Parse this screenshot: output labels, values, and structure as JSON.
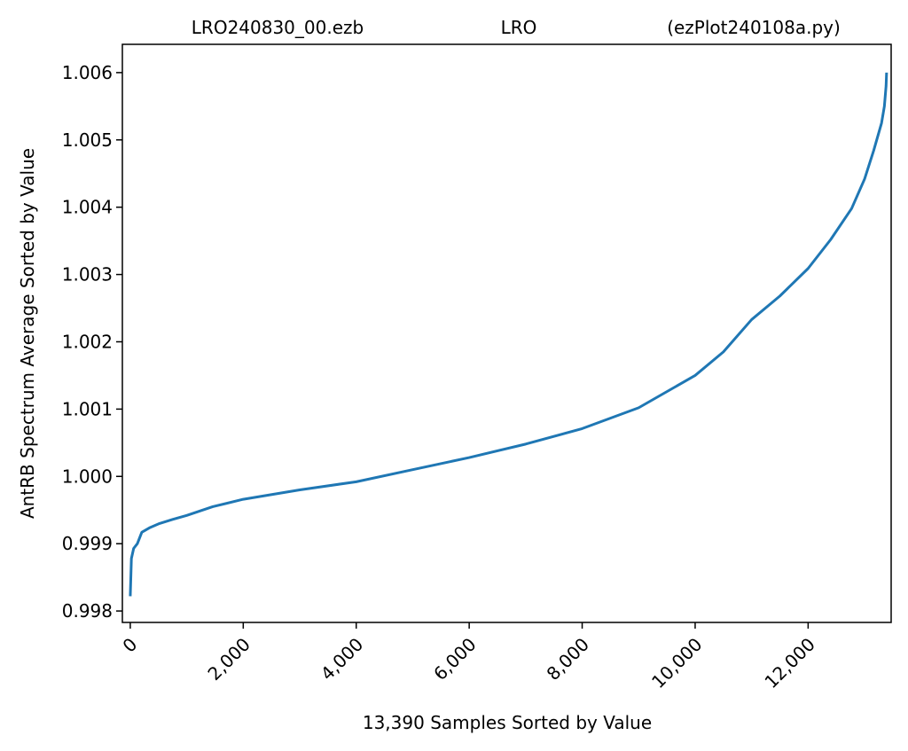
{
  "chart_data": {
    "type": "line",
    "titles": [
      "LRO240830_00.ezb",
      "LRO",
      "(ezPlot240108a.py)"
    ],
    "x_label": "13,390 Samples Sorted by Value",
    "y_label": "AntRB Spectrum Average Sorted by Value",
    "series": [
      {
        "name": "AntRB",
        "color": "#1f77b4",
        "x": [
          0,
          20,
          60,
          125,
          204,
          350,
          518,
          750,
          1000,
          1460,
          2000,
          3000,
          4000,
          5000,
          6000,
          7000,
          8000,
          9000,
          10000,
          10500,
          11000,
          11500,
          12000,
          12400,
          12770,
          13000,
          13160,
          13300,
          13350,
          13380,
          13389
        ],
        "values": [
          0.99822,
          0.99878,
          0.99893,
          0.999,
          0.99917,
          0.99924,
          0.9993,
          0.99936,
          0.99942,
          0.99955,
          0.99966,
          0.9998,
          0.99992,
          1.0001,
          1.00028,
          1.00048,
          1.00071,
          1.00102,
          1.0015,
          1.00185,
          1.00233,
          1.00268,
          1.00309,
          1.00352,
          1.00398,
          1.00442,
          1.00484,
          1.00525,
          1.0055,
          1.0058,
          1.006
        ]
      }
    ],
    "xlim": [
      -140,
      13470
    ],
    "ylim": [
      0.99783,
      1.00642
    ],
    "xticks": [
      0,
      {
        "value": 2000,
        "label": "2,000"
      },
      {
        "value": 4000,
        "label": "4,000"
      },
      {
        "value": 6000,
        "label": "6,000"
      },
      {
        "value": 8000,
        "label": "8,000"
      },
      {
        "value": 10000,
        "label": "10,000"
      },
      {
        "value": 12000,
        "label": "12,000"
      }
    ],
    "yticks": [
      0.998,
      0.999,
      {
        "value": 1.0,
        "label": "1.000"
      },
      1.001,
      1.002,
      1.003,
      1.004,
      1.005,
      1.006
    ],
    "grid": false
  }
}
